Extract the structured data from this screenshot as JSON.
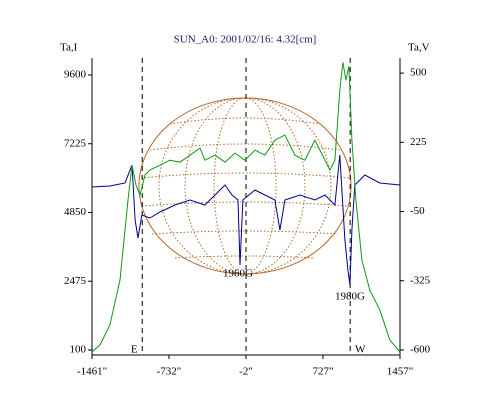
{
  "chart_data": {
    "type": "line",
    "title": "SUN_A0: 2001/02/16: 4.32[cm]",
    "ylabel": "Ta,I",
    "y2label": "Ta,V",
    "xlim": [
      -1461,
      1457
    ],
    "xticks": [
      {
        "value": -1461,
        "label": "-1461\""
      },
      {
        "value": -732,
        "label": "-732\""
      },
      {
        "value": -2,
        "label": "-2\""
      },
      {
        "value": 727,
        "label": "727\""
      },
      {
        "value": 1457,
        "label": "1457\""
      }
    ],
    "ylim": [
      -73,
      10187
    ],
    "yticks": [
      100,
      2475,
      4850,
      7225,
      9600
    ],
    "y2lim": [
      -620,
      560
    ],
    "y2ticks": [
      -600,
      -325,
      -50,
      225,
      500
    ],
    "vlines": [
      -985,
      -2,
      985
    ],
    "annotations": [
      "E",
      "W",
      "1960G",
      "1980G"
    ],
    "series": [
      {
        "name": "Ta,I",
        "color": "#00008b",
        "x": [
          -1461,
          -1291,
          -1148,
          -1082,
          -1053,
          -1025,
          -988,
          -912,
          -817,
          -675,
          -533,
          -391,
          -296,
          -201,
          -135,
          -78,
          -59,
          -31,
          83,
          177,
          272,
          319,
          367,
          509,
          651,
          746,
          840,
          887,
          935,
          963,
          982,
          1001,
          1029,
          1124,
          1266,
          1457
        ],
        "values": [
          5730,
          5766,
          5870,
          6492,
          4592,
          3970,
          4764,
          4661,
          4868,
          5110,
          5282,
          5110,
          5455,
          5800,
          5455,
          5282,
          3037,
          5282,
          5628,
          5455,
          5282,
          4246,
          5282,
          5455,
          5282,
          5455,
          5110,
          6837,
          3900,
          2864,
          2346,
          4246,
          5800,
          6146,
          5870,
          5800
        ]
      },
      {
        "name": "Ta,V",
        "color": "#119911",
        "axis": "y2",
        "x": [
          -1461,
          -1385,
          -1291,
          -1196,
          -1120,
          -1082,
          -1044,
          -1006,
          -959,
          -912,
          -817,
          -722,
          -628,
          -533,
          -438,
          -391,
          -296,
          -201,
          -107,
          -12,
          83,
          177,
          272,
          367,
          461,
          556,
          651,
          698,
          793,
          840,
          887,
          916,
          944,
          973,
          1001,
          1039,
          1096,
          1171,
          1266,
          1360,
          1457
        ],
        "values": [
          -608,
          -580,
          -501,
          -322,
          -4,
          134,
          55,
          15,
          95,
          115,
          134,
          154,
          146,
          174,
          202,
          154,
          174,
          146,
          182,
          154,
          194,
          174,
          234,
          254,
          174,
          154,
          234,
          194,
          115,
          154,
          432,
          543,
          472,
          527,
          234,
          -4,
          -243,
          -362,
          -441,
          -560,
          -608
        ]
      }
    ]
  }
}
